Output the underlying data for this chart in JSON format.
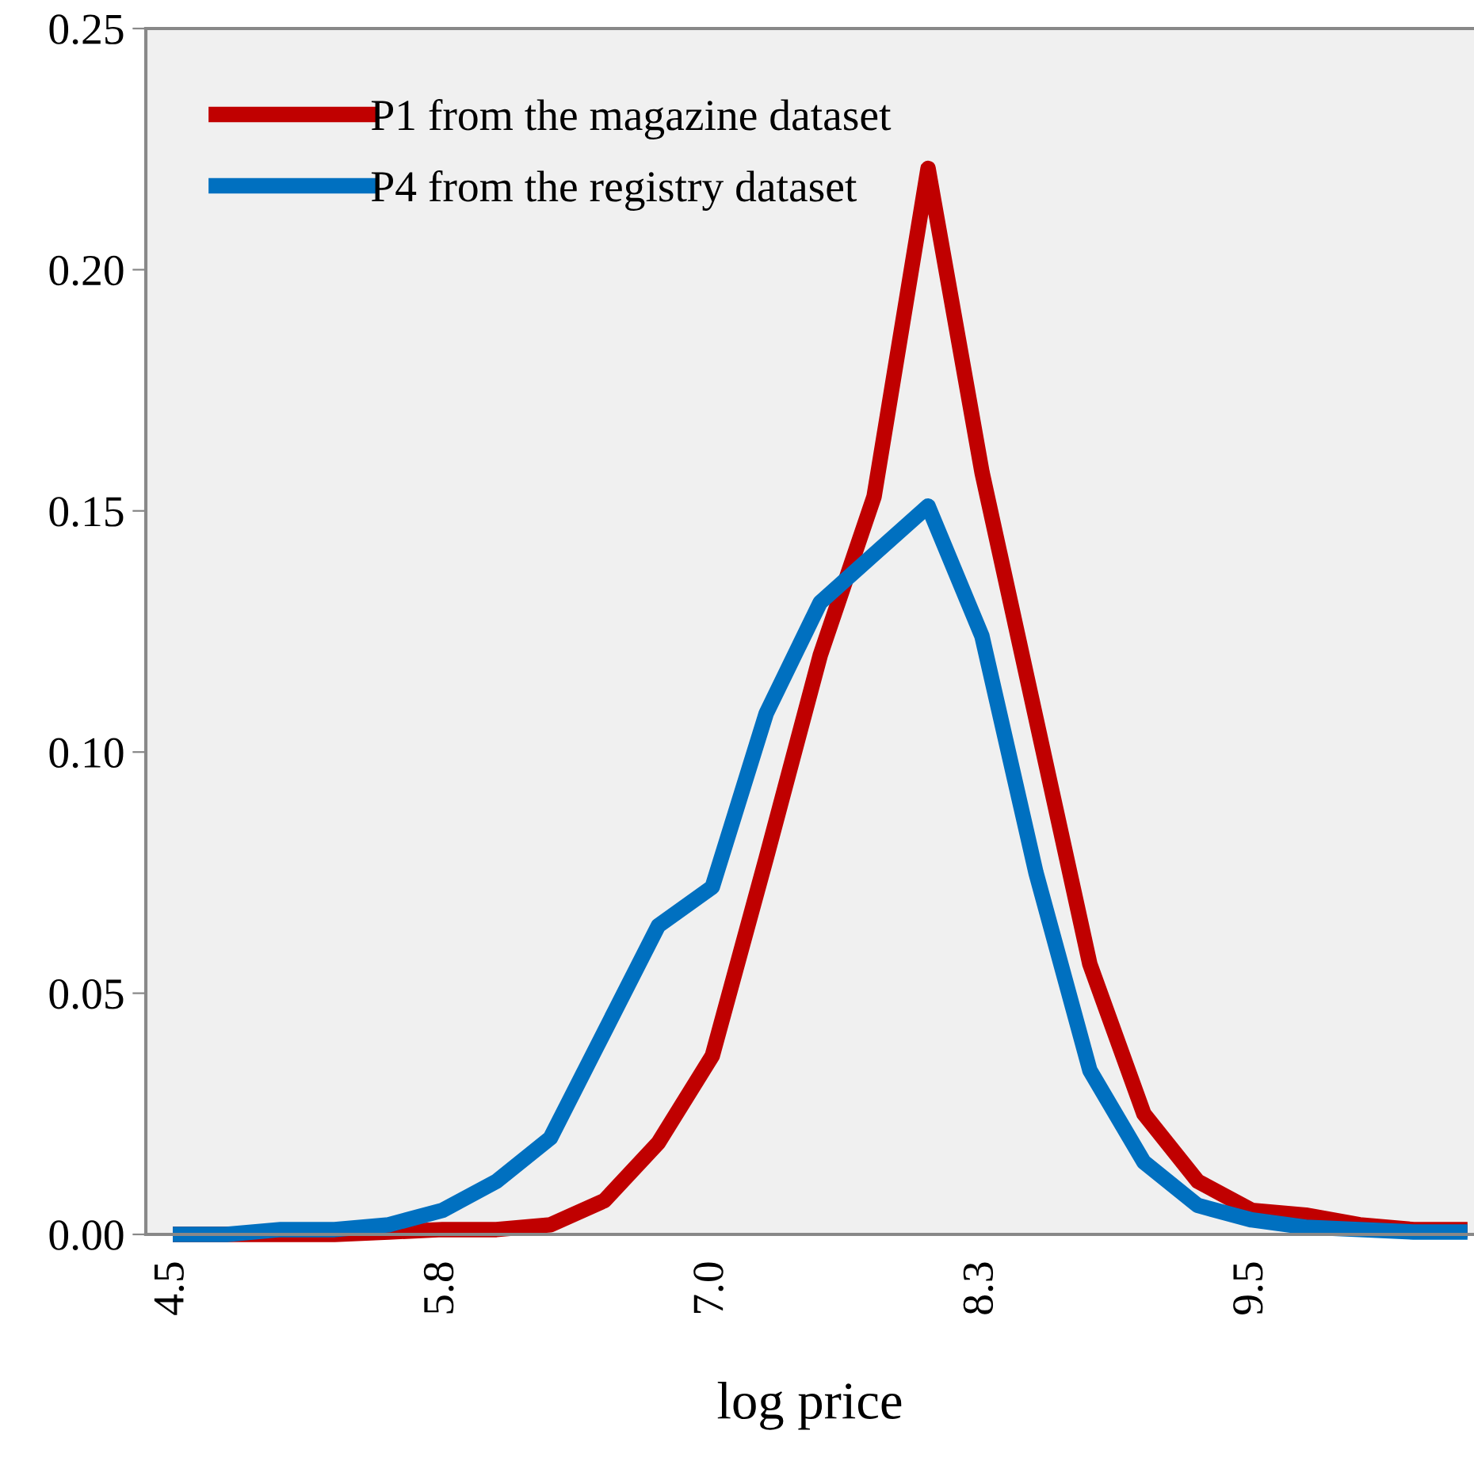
{
  "chart_data": {
    "type": "line",
    "xlabel": "log price",
    "categories": [
      "4.5",
      null,
      null,
      null,
      null,
      "5.8",
      null,
      null,
      null,
      null,
      "7.0",
      null,
      null,
      null,
      null,
      "8.3",
      null,
      null,
      null,
      null,
      "9.5",
      null,
      null,
      null,
      null
    ],
    "series": [
      {
        "name": "P1 from the magazine dataset",
        "color": "#c00000",
        "values": [
          0,
          0,
          0,
          0,
          0.0005,
          0.001,
          0.001,
          0.002,
          0.007,
          0.019,
          0.037,
          0.078,
          0.12,
          0.153,
          0.221,
          0.158,
          0.107,
          0.056,
          0.025,
          0.011,
          0.005,
          0.004,
          0.002,
          0.001,
          0.001
        ]
      },
      {
        "name": "P4 from the registry dataset",
        "color": "#0070c0",
        "values": [
          0,
          0,
          0.001,
          0.001,
          0.002,
          0.005,
          0.011,
          0.02,
          0.042,
          0.064,
          0.072,
          0.108,
          0.131,
          0.141,
          0.151,
          0.124,
          0.075,
          0.034,
          0.015,
          0.006,
          0.003,
          0.0015,
          0.001,
          0.0005,
          0.0005
        ]
      }
    ],
    "ylim": [
      0,
      0.25
    ],
    "yticks": [
      {
        "value": 0,
        "label": "0.00"
      },
      {
        "value": 0.05,
        "label": "0.05"
      },
      {
        "value": 0.1,
        "label": "0.10"
      },
      {
        "value": 0.15,
        "label": "0.15"
      },
      {
        "value": 0.2,
        "label": "0.20"
      },
      {
        "value": 0.25,
        "label": "0.25"
      }
    ],
    "grid": false,
    "legend": "top left",
    "marker": "none",
    "line_style": "solid"
  }
}
